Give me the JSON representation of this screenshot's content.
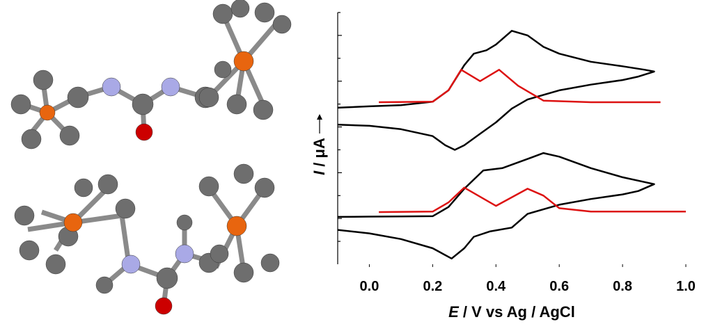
{
  "chart_data": {
    "type": "line",
    "x_label": {
      "symbol": "E",
      "text": "/ V vs Ag / AgCl"
    },
    "y_label": {
      "symbol": "I",
      "text": "/ μA"
    },
    "xlim": [
      -0.1,
      1.0
    ],
    "xticks": [
      {
        "value": 0,
        "label": "0.0"
      },
      {
        "value": 0.2,
        "label": "0.2"
      },
      {
        "value": 0.4,
        "label": "0.4"
      },
      {
        "value": 0.6,
        "label": "0.6"
      },
      {
        "value": 0.8,
        "label": "0.8"
      },
      {
        "value": 1.0,
        "label": "1.0"
      }
    ],
    "ylim": [
      0,
      11
    ],
    "yticks": [
      1,
      2,
      3,
      4,
      5,
      6,
      7,
      8,
      9,
      10,
      11
    ],
    "series": [
      {
        "color": "#000000",
        "x": [
          -0.1,
          0.0,
          0.1,
          0.2,
          0.25,
          0.3,
          0.33,
          0.37,
          0.4,
          0.45,
          0.5,
          0.55,
          0.6,
          0.7,
          0.8,
          0.87,
          0.9,
          0.85,
          0.8,
          0.7,
          0.6,
          0.5,
          0.45,
          0.4,
          0.35,
          0.3,
          0.27,
          0.24,
          0.2,
          0.1,
          0.0,
          -0.1
        ],
        "values": [
          6.84,
          6.9,
          6.95,
          7.1,
          7.6,
          8.7,
          9.2,
          9.35,
          9.6,
          10.2,
          10.0,
          9.5,
          9.2,
          8.85,
          8.65,
          8.5,
          8.42,
          8.2,
          8.05,
          7.85,
          7.6,
          7.2,
          6.8,
          6.2,
          5.7,
          5.2,
          5.0,
          5.2,
          5.6,
          5.9,
          6.05,
          6.1
        ]
      },
      {
        "color": "#dd1111",
        "x": [
          0.03,
          0.2,
          0.25,
          0.29,
          0.35,
          0.41,
          0.47,
          0.55,
          0.7,
          0.92
        ],
        "values": [
          7.08,
          7.1,
          7.6,
          8.5,
          8.0,
          8.5,
          7.8,
          7.15,
          7.08,
          7.08
        ]
      },
      {
        "color": "#000000",
        "x": [
          -0.1,
          0.0,
          0.1,
          0.2,
          0.25,
          0.3,
          0.36,
          0.42,
          0.5,
          0.55,
          0.6,
          0.7,
          0.8,
          0.9,
          0.85,
          0.8,
          0.7,
          0.6,
          0.5,
          0.45,
          0.38,
          0.33,
          0.3,
          0.26,
          0.2,
          0.1,
          0.0,
          -0.1
        ],
        "values": [
          2.07,
          2.08,
          2.09,
          2.1,
          2.5,
          3.3,
          4.1,
          4.2,
          4.6,
          4.86,
          4.7,
          4.2,
          3.8,
          3.5,
          3.2,
          3.05,
          2.85,
          2.6,
          2.2,
          1.6,
          1.43,
          1.2,
          0.7,
          0.25,
          0.7,
          1.1,
          1.35,
          1.5
        ]
      },
      {
        "color": "#dd1111",
        "x": [
          0.03,
          0.2,
          0.25,
          0.3,
          0.4,
          0.5,
          0.55,
          0.6,
          0.7,
          1.0
        ],
        "values": [
          2.28,
          2.3,
          2.7,
          3.35,
          2.55,
          3.3,
          3.0,
          2.45,
          2.3,
          2.3
        ]
      }
    ]
  }
}
